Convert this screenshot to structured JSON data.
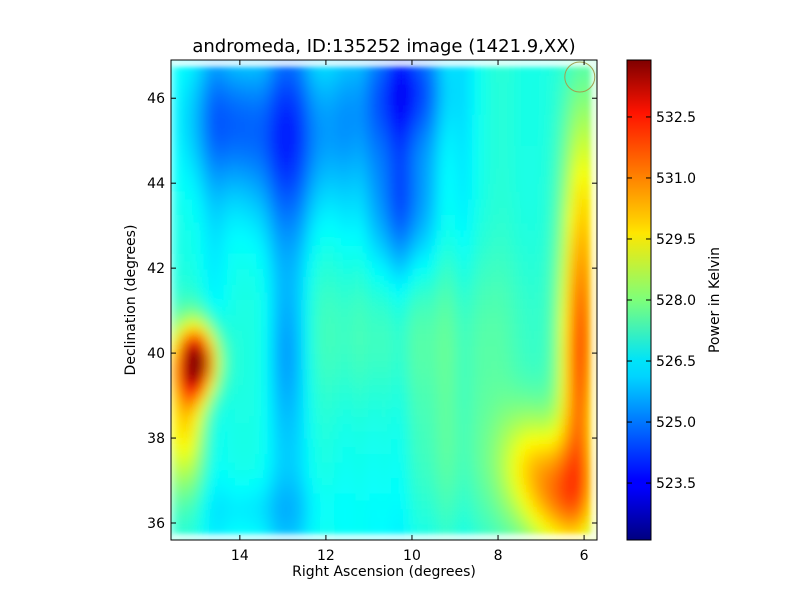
{
  "chart_data": {
    "type": "heatmap",
    "title": "andromeda, ID:135252 image (1421.9,XX)",
    "xlabel": "Right Ascension (degrees)",
    "ylabel": "Declination (degrees)",
    "xlim": [
      15.6,
      5.7
    ],
    "ylim": [
      35.6,
      46.9
    ],
    "x_ticks": [
      14,
      12,
      10,
      8,
      6
    ],
    "y_ticks": [
      36,
      38,
      40,
      42,
      44,
      46
    ],
    "x_tick_labels": [
      "14",
      "12",
      "10",
      "8",
      "6"
    ],
    "y_tick_labels": [
      "36",
      "38",
      "40",
      "42",
      "44",
      "46"
    ],
    "colorbar": {
      "label": "Power in Kelvin",
      "colormap": "jet",
      "range": [
        522.1,
        533.9
      ],
      "ticks": [
        523.5,
        525.0,
        526.5,
        528.0,
        529.5,
        531.0,
        532.5
      ],
      "tick_labels": [
        "523.5",
        "525.0",
        "526.5",
        "528.0",
        "529.5",
        "531.0",
        "532.5"
      ]
    },
    "features": [
      {
        "kind": "hot-spot",
        "ra": 15.0,
        "dec": 39.8,
        "value": 533.5
      },
      {
        "kind": "hot-edge",
        "ra": 6.2,
        "dec": 39.0,
        "value": 531.0
      },
      {
        "kind": "cold-spot",
        "ra": 10.1,
        "dec": 46.2,
        "value": 522.5
      },
      {
        "kind": "cold-band",
        "ra": 13.0,
        "dec": 44.0,
        "value": 525.2
      }
    ],
    "beam_marker": {
      "ra": 6.1,
      "dec": 46.5,
      "color": "#a0a050"
    },
    "grid": false,
    "background_value": 526.8
  }
}
